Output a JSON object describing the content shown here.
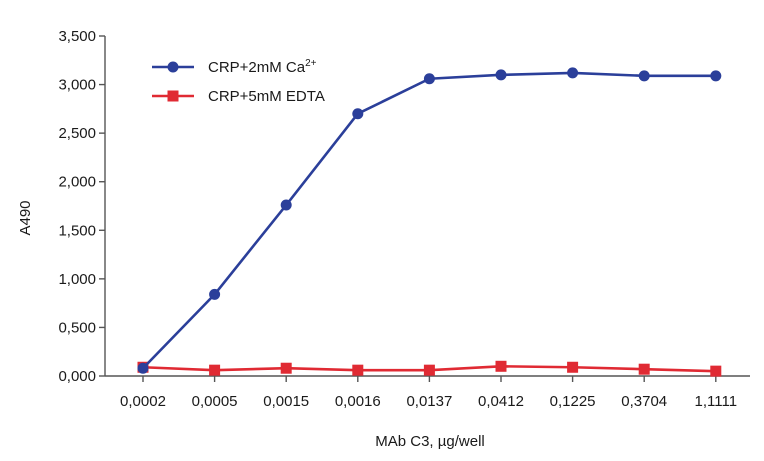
{
  "chart_data": {
    "type": "line",
    "title": "",
    "xlabel": "MAb C3, µg/well",
    "ylabel": "A490",
    "categories": [
      "0,0002",
      "0,0005",
      "0,0015",
      "0,0016",
      "0,0137",
      "0,0412",
      "0,1225",
      "0,3704",
      "1,1111"
    ],
    "ylim": [
      0,
      3.5
    ],
    "yticks": [
      0,
      0.5,
      1.0,
      1.5,
      2.0,
      2.5,
      3.0,
      3.5
    ],
    "ytick_labels": [
      "0,000",
      "0,500",
      "1,000",
      "1,500",
      "2,000",
      "2,500",
      "3,000",
      "3,500"
    ],
    "grid": false,
    "legend_position": "top-left",
    "series": [
      {
        "name": "CRP+2mM Ca",
        "name_sup": "2+",
        "color": "#2b3f9a",
        "marker": "circle",
        "values": [
          0.08,
          0.84,
          1.76,
          2.7,
          3.06,
          3.1,
          3.12,
          3.09,
          3.09
        ]
      },
      {
        "name": "CRP+5mM EDTA",
        "color": "#e02a33",
        "marker": "square",
        "values": [
          0.09,
          0.06,
          0.08,
          0.06,
          0.06,
          0.1,
          0.09,
          0.07,
          0.05
        ]
      }
    ]
  }
}
